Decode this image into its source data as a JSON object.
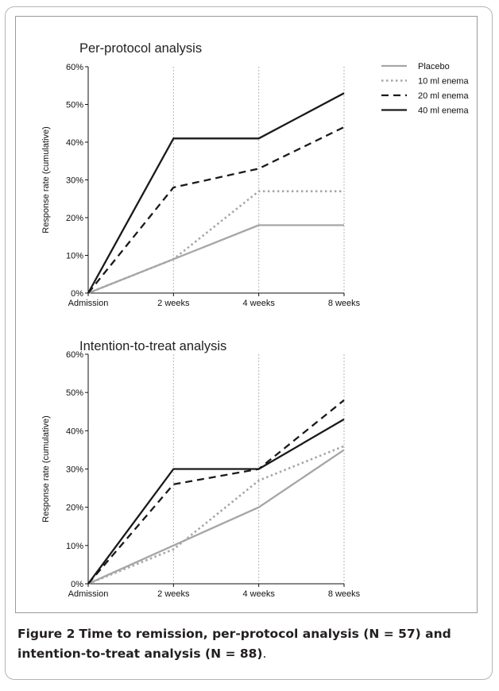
{
  "figure": {
    "caption_label": "Figure 2",
    "caption_bold_text": "Time to remission, per-protocol analysis (N = 57) and intention-to-treat analysis (N = 88)",
    "caption_end": "."
  },
  "colors": {
    "Placebo": "#a6a6a6",
    "10 ml enema": "#a6a6a6",
    "20 ml enema": "#1a1a1a",
    "40 ml enema": "#1a1a1a",
    "guide": "#b5b5b5"
  },
  "line_styles": {
    "Placebo": "solid",
    "10 ml enema": "dotted",
    "20 ml enema": "dashed",
    "40 ml enema": "solid"
  },
  "chart_data": [
    {
      "type": "line",
      "title": "Per-protocol analysis",
      "xlabel": "",
      "ylabel": "Response rate (cumulative)",
      "categories": [
        "Admission",
        "2 weeks",
        "4 weeks",
        "8 weeks"
      ],
      "ylim": [
        0,
        60
      ],
      "yticks": [
        "0%",
        "10%",
        "20%",
        "30%",
        "40%",
        "50%",
        "60%"
      ],
      "legend": "top-right",
      "grid": false,
      "series": [
        {
          "name": "Placebo",
          "values": [
            0,
            9,
            18,
            18
          ]
        },
        {
          "name": "10 ml enema",
          "values": [
            0,
            9,
            27,
            27
          ]
        },
        {
          "name": "20 ml enema",
          "values": [
            0,
            28,
            33,
            44
          ]
        },
        {
          "name": "40 ml enema",
          "values": [
            0,
            41,
            41,
            53
          ]
        }
      ]
    },
    {
      "type": "line",
      "title": "Intention-to-treat analysis",
      "xlabel": "",
      "ylabel": "Response rate (cumulative)",
      "categories": [
        "Admission",
        "2 weeks",
        "4 weeks",
        "8 weeks"
      ],
      "ylim": [
        0,
        60
      ],
      "yticks": [
        "0%",
        "10%",
        "20%",
        "30%",
        "40%",
        "50%",
        "60%"
      ],
      "grid": false,
      "series": [
        {
          "name": "Placebo",
          "values": [
            0,
            10,
            20,
            35
          ]
        },
        {
          "name": "10 ml enema",
          "values": [
            0,
            9,
            27,
            36
          ]
        },
        {
          "name": "20 ml enema",
          "values": [
            0,
            26,
            30,
            48
          ]
        },
        {
          "name": "40 ml enema",
          "values": [
            0,
            30,
            30,
            43
          ]
        }
      ]
    }
  ]
}
